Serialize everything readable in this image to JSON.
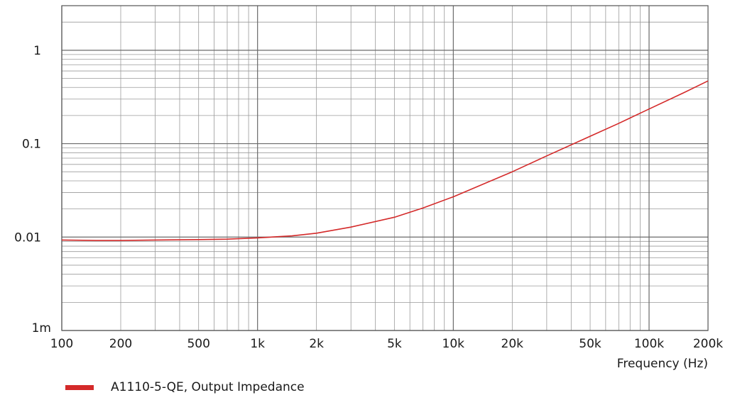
{
  "chart_data": {
    "type": "line",
    "xlabel": "Frequency  (Hz)",
    "ylabel": "",
    "xscale": "log",
    "yscale": "log",
    "xlim": [
      100,
      200000
    ],
    "ylim": [
      0.001,
      3
    ],
    "grid": true,
    "x_ticks": [
      {
        "value": 100,
        "label": "100"
      },
      {
        "value": 200,
        "label": "200"
      },
      {
        "value": 500,
        "label": "500"
      },
      {
        "value": 1000,
        "label": "1k"
      },
      {
        "value": 2000,
        "label": "2k"
      },
      {
        "value": 5000,
        "label": "5k"
      },
      {
        "value": 10000,
        "label": "10k"
      },
      {
        "value": 20000,
        "label": "20k"
      },
      {
        "value": 50000,
        "label": "50k"
      },
      {
        "value": 100000,
        "label": "100k"
      },
      {
        "value": 200000,
        "label": "200k"
      }
    ],
    "y_ticks": [
      {
        "value": 0.001,
        "label": "1m"
      },
      {
        "value": 0.01,
        "label": "0.01"
      },
      {
        "value": 0.1,
        "label": "0.1"
      },
      {
        "value": 1,
        "label": "1"
      }
    ],
    "legend_position": "bottom-left",
    "series": [
      {
        "name": "A1110-5-QE, Output Impedance",
        "color": "#d42a2a",
        "x": [
          100,
          150,
          200,
          300,
          500,
          700,
          1000,
          1500,
          2000,
          3000,
          5000,
          7000,
          10000,
          20000,
          30000,
          50000,
          70000,
          100000,
          150000,
          200000
        ],
        "y": [
          0.0093,
          0.0092,
          0.0092,
          0.0093,
          0.0094,
          0.0095,
          0.0098,
          0.0103,
          0.011,
          0.0128,
          0.0163,
          0.0205,
          0.027,
          0.05,
          0.074,
          0.12,
          0.165,
          0.235,
          0.35,
          0.47
        ]
      }
    ]
  }
}
